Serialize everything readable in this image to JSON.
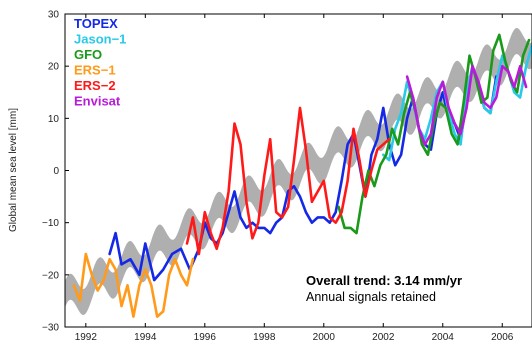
{
  "chart_data": {
    "type": "line",
    "title": "",
    "xlabel": "",
    "ylabel": "Global mean sea level [mm]",
    "xlim": [
      1991.3,
      2007.0
    ],
    "ylim": [
      -30,
      30
    ],
    "xticks": [
      1992,
      1994,
      1996,
      1998,
      2000,
      2002,
      2004,
      2006
    ],
    "yticks": [
      -30,
      -20,
      -10,
      0,
      10,
      20,
      30
    ],
    "grid": false,
    "legend": {
      "placement": "top-left"
    },
    "trend": {
      "name": "Overall trend",
      "slope_mm_per_yr": 3.14,
      "band_halfwidth_mm": 2.5,
      "intercept_year": 1991.3,
      "intercept_mm": -25,
      "color": "#a6a6a6"
    },
    "annotations": [
      "Overall trend: 3.14 mm/yr",
      "Annual signals retained"
    ],
    "series": [
      {
        "name": "TOPEX",
        "color": "#1428e6",
        "x": [
          1992.8,
          1993.0,
          1993.2,
          1993.5,
          1993.8,
          1994.0,
          1994.3,
          1994.6,
          1994.9,
          1995.2,
          1995.5,
          1995.8,
          1996.0,
          1996.2,
          1996.4,
          1996.6,
          1996.8,
          1997.0,
          1997.2,
          1997.4,
          1997.6,
          1997.8,
          1998.0,
          1998.2,
          1998.4,
          1998.6,
          1998.8,
          1999.0,
          1999.2,
          1999.4,
          1999.6,
          1999.8,
          2000.0,
          2000.2,
          2000.4,
          2000.6,
          2000.8,
          2001.0,
          2001.2,
          2001.4,
          2001.6,
          2001.8,
          2002.0,
          2002.2,
          2002.4,
          2002.6,
          2002.8,
          2003.0,
          2003.2,
          2003.4,
          2003.6,
          2003.8,
          2004.0,
          2004.2,
          2004.4,
          2004.6,
          2004.8,
          2005.0,
          2005.2,
          2005.4,
          2005.6,
          2005.8
        ],
        "y": [
          -16,
          -12,
          -18,
          -17,
          -20,
          -14,
          -21,
          -19,
          -16,
          -15,
          -19,
          -15,
          -10,
          -13,
          -14,
          -12,
          -8,
          -4,
          -9,
          -11,
          -10,
          -11,
          -11,
          -12,
          -10,
          -9,
          -4,
          -3,
          -5,
          -8,
          -10,
          -9,
          -9,
          -10,
          -8,
          -2,
          5,
          7,
          1,
          -5,
          3,
          6,
          12,
          5,
          1,
          3,
          10,
          14,
          8,
          5,
          4,
          11,
          15,
          10,
          9,
          6,
          13,
          20,
          16,
          12,
          11,
          18
        ]
      },
      {
        "name": "Jason-1",
        "color": "#29c9e8",
        "x": [
          2002.0,
          2002.2,
          2002.4,
          2002.6,
          2002.8,
          2003.0,
          2003.2,
          2003.4,
          2003.6,
          2003.8,
          2004.0,
          2004.2,
          2004.4,
          2004.6,
          2004.8,
          2005.0,
          2005.2,
          2005.4,
          2005.6,
          2005.8,
          2006.0,
          2006.2,
          2006.4,
          2006.6,
          2006.8,
          2007.0
        ],
        "y": [
          3,
          2,
          8,
          11,
          17,
          13,
          8,
          6,
          10,
          15,
          17,
          11,
          7,
          5,
          15,
          20,
          16,
          12,
          11,
          17,
          22,
          19,
          15,
          14,
          20,
          24
        ]
      },
      {
        "name": "GFO",
        "color": "#1a991a",
        "x": [
          2000.5,
          2000.7,
          2000.9,
          2001.1,
          2001.3,
          2001.5,
          2001.7,
          2001.9,
          2002.1,
          2002.3,
          2002.5,
          2002.7,
          2002.9,
          2003.1,
          2003.3,
          2003.5,
          2003.7,
          2003.9,
          2004.1,
          2004.3,
          2004.5,
          2004.7,
          2004.9,
          2005.1,
          2005.3,
          2005.5,
          2005.7,
          2005.9,
          2006.1,
          2006.3,
          2006.5,
          2006.7,
          2006.9
        ],
        "y": [
          -7,
          -11,
          -11,
          -12,
          -5,
          0,
          -3,
          1,
          3,
          8,
          5,
          11,
          15,
          11,
          5,
          3,
          9,
          13,
          12,
          7,
          5,
          13,
          22,
          18,
          13,
          14,
          23,
          26,
          21,
          17,
          15,
          22,
          25
        ]
      },
      {
        "name": "ERS-1",
        "color": "#ff9a1a",
        "x": [
          1991.6,
          1991.8,
          1992.0,
          1992.2,
          1992.4,
          1992.6,
          1992.8,
          1993.0,
          1993.2,
          1993.4,
          1993.6,
          1993.8,
          1994.0,
          1994.2,
          1994.4,
          1994.6,
          1994.8,
          1995.0,
          1995.2,
          1995.4,
          1995.6
        ],
        "y": [
          -22,
          -25,
          -16,
          -20,
          -23,
          -21,
          -17,
          -19,
          -26,
          -22,
          -28,
          -22,
          -19,
          -22,
          -28,
          -27,
          -20,
          -17,
          -20,
          -22,
          -17
        ]
      },
      {
        "name": "ERS-2",
        "color": "#ff1a1a",
        "x": [
          1995.4,
          1995.6,
          1995.8,
          1996.0,
          1996.2,
          1996.4,
          1996.6,
          1996.8,
          1997.0,
          1997.2,
          1997.4,
          1997.6,
          1997.8,
          1998.0,
          1998.2,
          1998.4,
          1998.6,
          1998.8,
          1999.0,
          1999.2,
          1999.4,
          1999.6,
          1999.8,
          2000.0,
          2000.2,
          2000.4,
          2000.6,
          2000.8,
          2001.0,
          2001.2,
          2001.4,
          2001.6,
          2001.8,
          2002.0,
          2002.2
        ],
        "y": [
          -14,
          -9,
          -16,
          -8,
          -12,
          -15,
          -11,
          -4,
          9,
          5,
          -6,
          -13,
          -10,
          -1,
          6,
          -8,
          -9,
          -7,
          2,
          12,
          4,
          -6,
          -4,
          -2,
          -9,
          -10,
          -8,
          -2,
          8,
          2,
          -5,
          0,
          4,
          5,
          6
        ]
      },
      {
        "name": "Envisat",
        "color": "#b91ad9",
        "x": [
          2002.8,
          2003.0,
          2003.2,
          2003.4,
          2003.6,
          2003.8,
          2004.0,
          2004.2,
          2004.4,
          2004.6,
          2004.8,
          2005.0,
          2005.2,
          2005.4,
          2005.6,
          2005.8,
          2006.0,
          2006.2,
          2006.4,
          2006.6,
          2006.8
        ],
        "y": [
          18,
          14,
          8,
          5,
          7,
          14,
          17,
          12,
          9,
          7,
          12,
          20,
          17,
          13,
          12,
          14,
          20,
          19,
          16,
          20,
          16
        ]
      }
    ]
  }
}
